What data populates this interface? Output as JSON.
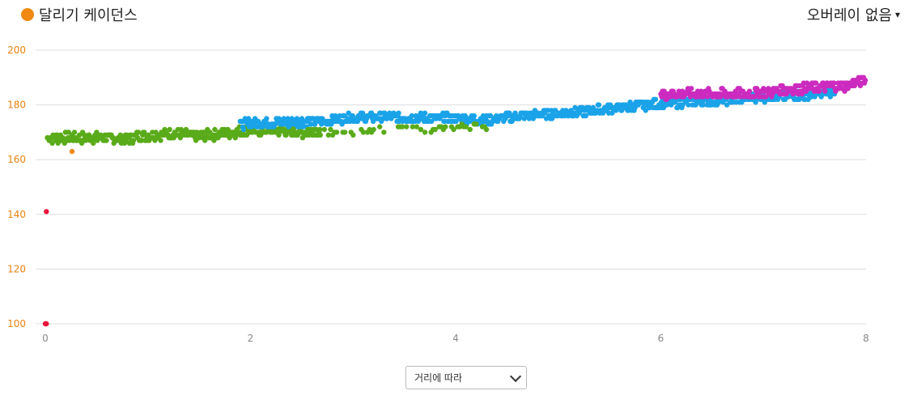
{
  "header": {
    "title": "달리기 케이던스",
    "title_dot_color": "#f08a12",
    "overlay_label": "오버레이 없음",
    "overlay_caret": "▾"
  },
  "footer": {
    "select_value": "거리에 따라"
  },
  "chart_data": {
    "type": "scatter",
    "title": "달리기 케이던스",
    "xlabel": "",
    "ylabel": "",
    "xlim": [
      0,
      8
    ],
    "ylim": [
      100,
      200
    ],
    "x_ticks": [
      0,
      2,
      4,
      6,
      8
    ],
    "y_ticks": [
      100,
      120,
      140,
      160,
      180,
      200
    ],
    "grid": true,
    "colors": {
      "red": "#e8143c",
      "orange": "#f08a12",
      "green": "#5aab1a",
      "blue": "#1aa3e8",
      "purple": "#cc2bbf",
      "ytick": "#e8830f",
      "xtick": "#888888",
      "grid": "#dddddd"
    },
    "segments": [
      {
        "color": "red",
        "points": [
          [
            0.0,
            100
          ],
          [
            0.01,
            100
          ],
          [
            0.01,
            141
          ]
        ]
      },
      {
        "color": "orange",
        "points": [
          [
            0.26,
            163
          ]
        ]
      },
      {
        "color": "green",
        "trend": [
          [
            0.02,
            168
          ],
          [
            0.2,
            168
          ],
          [
            0.5,
            168
          ],
          [
            0.8,
            167.5
          ],
          [
            0.9,
            168.5
          ],
          [
            1.2,
            169.5
          ],
          [
            1.5,
            168.5
          ],
          [
            1.8,
            170
          ],
          [
            2.2,
            171
          ],
          [
            2.5,
            170
          ],
          [
            2.68,
            171
          ]
        ],
        "spread": 1.8
      },
      {
        "color": "blue",
        "trend": [
          [
            1.9,
            173
          ],
          [
            2.1,
            173.5
          ],
          [
            2.72,
            174
          ],
          [
            3.0,
            175.5
          ],
          [
            3.5,
            175.5
          ],
          [
            4.0,
            175
          ],
          [
            4.3,
            174.5
          ],
          [
            4.8,
            176.5
          ],
          [
            5.2,
            177.5
          ],
          [
            5.6,
            179
          ],
          [
            6.0,
            180.5
          ],
          [
            6.5,
            181.5
          ],
          [
            7.0,
            183
          ],
          [
            7.4,
            183.5
          ],
          [
            7.7,
            185
          ]
        ],
        "spread": 1.6
      },
      {
        "color": "green",
        "trend": [
          [
            2.4,
            170
          ],
          [
            2.7,
            170
          ],
          [
            4.12,
            172
          ],
          [
            4.3,
            172
          ]
        ],
        "spread": 1.2,
        "sparse": true
      },
      {
        "color": "purple",
        "trend": [
          [
            6.0,
            184
          ],
          [
            6.4,
            184
          ],
          [
            6.9,
            184
          ],
          [
            7.2,
            185.5
          ],
          [
            7.5,
            186.5
          ],
          [
            7.8,
            187
          ],
          [
            8.0,
            189
          ]
        ],
        "spread": 1.8
      }
    ]
  }
}
